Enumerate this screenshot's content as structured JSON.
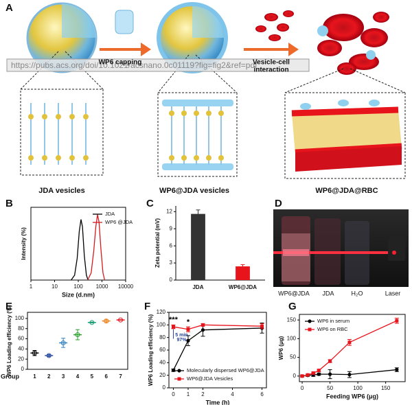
{
  "panel_labels": [
    "A",
    "B",
    "C",
    "D",
    "E",
    "F",
    "G"
  ],
  "scheme": {
    "step1": "WP6 capping",
    "step2": [
      "Vesicle-cell",
      "interaction"
    ],
    "url": "https://pubs.acs.org/doi/10.1021/acsnano.0c01119?fig=fig2&ref=pdf",
    "labels": [
      "JDA vesicles",
      "WP6@JDA vesicles",
      "WP6@JDA@RBC"
    ]
  },
  "photo": {
    "labels": [
      "WP6@JDA",
      "JDA",
      "H₂O",
      "Laser"
    ]
  },
  "chart_data": [
    {
      "type": "line",
      "xlabel": "Size (d.nm)",
      "ylabel": "Intensity (%)",
      "xlog": true,
      "xlim": [
        1,
        10000
      ],
      "xticks": [
        1,
        10,
        100,
        1000,
        10000
      ],
      "ylim": [
        0,
        30
      ],
      "legend": "upper-right",
      "series": [
        {
          "name": "JDA",
          "color": "#000000",
          "x": [
            50,
            70,
            90,
            110,
            130,
            150,
            180,
            220,
            260
          ],
          "values": [
            0,
            2,
            9,
            20,
            25,
            22,
            10,
            2,
            0
          ]
        },
        {
          "name": "WP6 @JDA",
          "color": "#d7191c",
          "x": [
            250,
            350,
            450,
            550,
            650,
            750,
            900,
            1100,
            1300
          ],
          "values": [
            0,
            3,
            12,
            22,
            27,
            24,
            13,
            3,
            0
          ]
        }
      ]
    },
    {
      "type": "bar",
      "ylabel": "Zeta potential (mV)",
      "categories": [
        "JDA",
        "WP6@JDA"
      ],
      "values": [
        11.6,
        2.4
      ],
      "errors": [
        0.7,
        0.3
      ],
      "colors": [
        "#333333",
        "#e8141c"
      ],
      "ylim": [
        0,
        13
      ],
      "yticks": [
        0,
        3,
        6,
        9,
        12
      ]
    },
    {
      "type": "dot",
      "xlabel": "Group",
      "ylabel": "WP6 Loading efficiency (%)",
      "categories": [
        "1",
        "2",
        "3",
        "4",
        "5",
        "6",
        "7"
      ],
      "values": [
        32,
        27,
        52,
        68,
        92,
        95,
        97
      ],
      "errors": [
        5,
        2,
        9,
        10,
        1,
        3,
        0.5
      ],
      "colors": [
        "#000000",
        "#2c4ea0",
        "#2f7fc1",
        "#2ca02c",
        "#1a9e77",
        "#f07f1a",
        "#e8141c"
      ],
      "ylim": [
        0,
        112
      ],
      "yticks": [
        0,
        20,
        40,
        60,
        80,
        100
      ]
    },
    {
      "type": "line",
      "xlabel": "Time (h)",
      "ylabel": "WP6 Loading efficiency (%)",
      "x": [
        0,
        1,
        2,
        6
      ],
      "xlim": [
        -0.3,
        6.3
      ],
      "xticks": [
        0,
        1,
        2,
        4,
        6
      ],
      "ylim": [
        0,
        120
      ],
      "yticks": [
        0,
        20,
        40,
        60,
        80,
        100,
        120
      ],
      "legend": "lower-left",
      "annotations": [
        "***",
        "*",
        "5 min",
        "97%"
      ],
      "series": [
        {
          "name": "Molecularly dispersed WP6@JDA",
          "color": "#000000",
          "marker": "circle",
          "values": [
            28,
            75,
            92,
            95
          ],
          "errors": [
            2,
            8,
            10,
            8
          ]
        },
        {
          "name": "WP6@JDA Vesicles",
          "color": "#e8141c",
          "marker": "square",
          "values": [
            97,
            93,
            100,
            98
          ],
          "errors": [
            3,
            4,
            2,
            4
          ]
        }
      ]
    },
    {
      "type": "line",
      "xlabel": "Feeding WP6 (μg)",
      "ylabel": "WP6 (μg)",
      "x": [
        0,
        10,
        20,
        30,
        50,
        85,
        170
      ],
      "xlim": [
        -5,
        185
      ],
      "xticks": [
        0,
        50,
        100,
        150
      ],
      "ylim": [
        -15,
        165
      ],
      "yticks": [
        0,
        50,
        100,
        150
      ],
      "legend": "upper-left",
      "series": [
        {
          "name": "WP6 in serum",
          "color": "#000000",
          "marker": "circle",
          "values": [
            0,
            2,
            3,
            5,
            5,
            4,
            17
          ],
          "errors": [
            2,
            3,
            4,
            3,
            12,
            8,
            5
          ]
        },
        {
          "name": "WP6 on RBC",
          "color": "#e8141c",
          "marker": "square",
          "values": [
            0,
            3,
            8,
            15,
            40,
            90,
            148
          ],
          "errors": [
            2,
            2,
            3,
            3,
            4,
            8,
            7
          ]
        }
      ]
    }
  ]
}
